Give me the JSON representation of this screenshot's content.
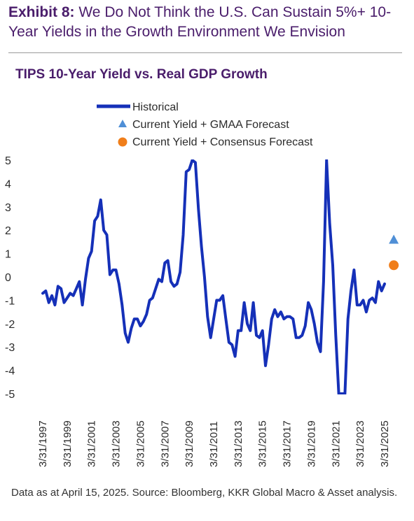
{
  "header": {
    "exhibit_label": "Exhibit 8:",
    "exhibit_text": "We Do Not Think the U.S. Can Sustain 5%+ 10-Year Yields in the Growth Environment We Envision"
  },
  "chart_data": {
    "type": "line",
    "title": "TIPS 10-Year Yield vs. Real GDP Growth",
    "ylim": [
      -5,
      5
    ],
    "yticks": [
      5,
      4,
      3,
      2,
      1,
      0,
      -1,
      -2,
      -3,
      -4,
      -5
    ],
    "xlim": [
      "1997-03-31",
      "2025-12-31"
    ],
    "xticks": [
      "3/31/1997",
      "3/31/1999",
      "3/31/2001",
      "3/31/2003",
      "3/31/2005",
      "3/31/2007",
      "3/31/2009",
      "3/31/2011",
      "3/31/2013",
      "3/31/2015",
      "3/31/2017",
      "3/31/2019",
      "3/31/2021",
      "3/31/2023",
      "3/31/2025"
    ],
    "grid": false,
    "legend_placement": "top-left",
    "colors": {
      "historical": "#1530b8",
      "gmaa": "#4f8fd6",
      "consensus": "#f07e1a"
    },
    "series": [
      {
        "name": "Historical",
        "marker": "line",
        "points": [
          [
            "1997-03-31",
            -0.7
          ],
          [
            "1997-06-30",
            -0.6
          ],
          [
            "1997-09-30",
            -1.1
          ],
          [
            "1997-12-31",
            -0.8
          ],
          [
            "1998-03-31",
            -1.2
          ],
          [
            "1998-06-30",
            -0.4
          ],
          [
            "1998-09-30",
            -0.5
          ],
          [
            "1998-12-31",
            -1.1
          ],
          [
            "1999-03-31",
            -0.9
          ],
          [
            "1999-06-30",
            -0.7
          ],
          [
            "1999-09-30",
            -0.8
          ],
          [
            "1999-12-31",
            -0.5
          ],
          [
            "2000-03-31",
            -0.2
          ],
          [
            "2000-06-30",
            -1.2
          ],
          [
            "2000-09-30",
            -0.1
          ],
          [
            "2000-12-31",
            0.8
          ],
          [
            "2001-03-31",
            1.1
          ],
          [
            "2001-06-30",
            2.4
          ],
          [
            "2001-09-30",
            2.6
          ],
          [
            "2001-12-31",
            3.3
          ],
          [
            "2002-03-31",
            2.0
          ],
          [
            "2002-06-30",
            1.8
          ],
          [
            "2002-09-30",
            0.1
          ],
          [
            "2002-12-31",
            0.3
          ],
          [
            "2003-03-31",
            0.3
          ],
          [
            "2003-06-30",
            -0.3
          ],
          [
            "2003-09-30",
            -1.2
          ],
          [
            "2003-12-31",
            -2.4
          ],
          [
            "2004-03-31",
            -2.8
          ],
          [
            "2004-06-30",
            -2.2
          ],
          [
            "2004-09-30",
            -1.8
          ],
          [
            "2004-12-31",
            -1.8
          ],
          [
            "2005-03-31",
            -2.1
          ],
          [
            "2005-06-30",
            -1.9
          ],
          [
            "2005-09-30",
            -1.6
          ],
          [
            "2005-12-31",
            -1.0
          ],
          [
            "2006-03-31",
            -0.9
          ],
          [
            "2006-06-30",
            -0.5
          ],
          [
            "2006-09-30",
            -0.1
          ],
          [
            "2006-12-31",
            -0.2
          ],
          [
            "2007-03-31",
            0.6
          ],
          [
            "2007-06-30",
            0.7
          ],
          [
            "2007-09-30",
            -0.2
          ],
          [
            "2007-12-31",
            -0.4
          ],
          [
            "2008-03-31",
            -0.3
          ],
          [
            "2008-06-30",
            0.2
          ],
          [
            "2008-09-30",
            1.8
          ],
          [
            "2008-12-31",
            4.5
          ],
          [
            "2009-03-31",
            4.6
          ],
          [
            "2009-06-30",
            5.0
          ],
          [
            "2009-09-30",
            4.9
          ],
          [
            "2009-12-31",
            2.9
          ],
          [
            "2010-03-31",
            1.3
          ],
          [
            "2010-06-30",
            0.0
          ],
          [
            "2010-09-30",
            -1.7
          ],
          [
            "2010-12-31",
            -2.6
          ],
          [
            "2011-03-31",
            -1.8
          ],
          [
            "2011-06-30",
            -1.0
          ],
          [
            "2011-09-30",
            -1.0
          ],
          [
            "2011-12-31",
            -0.8
          ],
          [
            "2012-03-31",
            -1.8
          ],
          [
            "2012-06-30",
            -2.8
          ],
          [
            "2012-09-30",
            -2.9
          ],
          [
            "2012-12-31",
            -3.4
          ],
          [
            "2013-03-31",
            -2.3
          ],
          [
            "2013-06-30",
            -2.3
          ],
          [
            "2013-09-30",
            -1.1
          ],
          [
            "2013-12-31",
            -2.0
          ],
          [
            "2014-03-31",
            -2.3
          ],
          [
            "2014-06-30",
            -1.1
          ],
          [
            "2014-09-30",
            -2.5
          ],
          [
            "2014-12-31",
            -2.6
          ],
          [
            "2015-03-31",
            -2.3
          ],
          [
            "2015-06-30",
            -3.8
          ],
          [
            "2015-09-30",
            -2.9
          ],
          [
            "2015-12-31",
            -1.8
          ],
          [
            "2016-03-31",
            -1.4
          ],
          [
            "2016-06-30",
            -1.7
          ],
          [
            "2016-09-30",
            -1.5
          ],
          [
            "2016-12-31",
            -1.8
          ],
          [
            "2017-03-31",
            -1.7
          ],
          [
            "2017-06-30",
            -1.7
          ],
          [
            "2017-09-30",
            -1.8
          ],
          [
            "2017-12-31",
            -2.6
          ],
          [
            "2018-03-31",
            -2.6
          ],
          [
            "2018-06-30",
            -2.5
          ],
          [
            "2018-09-30",
            -2.1
          ],
          [
            "2018-12-31",
            -1.1
          ],
          [
            "2019-03-31",
            -1.4
          ],
          [
            "2019-06-30",
            -2.0
          ],
          [
            "2019-09-30",
            -2.8
          ],
          [
            "2019-12-31",
            -3.2
          ],
          [
            "2020-03-31",
            -0.2
          ],
          [
            "2020-06-30",
            5.0
          ],
          [
            "2020-09-30",
            2.3
          ],
          [
            "2020-12-31",
            0.5
          ],
          [
            "2021-03-31",
            -2.5
          ],
          [
            "2021-06-30",
            -5.0
          ],
          [
            "2021-09-30",
            -5.0
          ],
          [
            "2021-12-31",
            -5.0
          ],
          [
            "2022-03-31",
            -1.8
          ],
          [
            "2022-06-30",
            -0.6
          ],
          [
            "2022-09-30",
            0.3
          ],
          [
            "2022-12-31",
            -1.2
          ],
          [
            "2023-03-31",
            -1.2
          ],
          [
            "2023-06-30",
            -1.0
          ],
          [
            "2023-09-30",
            -1.5
          ],
          [
            "2023-12-31",
            -1.0
          ],
          [
            "2024-03-31",
            -0.9
          ],
          [
            "2024-06-30",
            -1.1
          ],
          [
            "2024-09-30",
            -0.2
          ],
          [
            "2024-12-31",
            -0.6
          ],
          [
            "2025-03-31",
            -0.3
          ]
        ]
      },
      {
        "name": "Current Yield + GMAA Forecast",
        "marker": "triangle",
        "points": [
          [
            "2025-12-31",
            1.6
          ]
        ]
      },
      {
        "name": "Current Yield + Consensus Forecast",
        "marker": "circle",
        "points": [
          [
            "2025-12-31",
            0.5
          ]
        ]
      }
    ]
  },
  "footer": {
    "source": "Data as at April 15, 2025. Source: Bloomberg, KKR Global Macro & Asset analysis."
  }
}
